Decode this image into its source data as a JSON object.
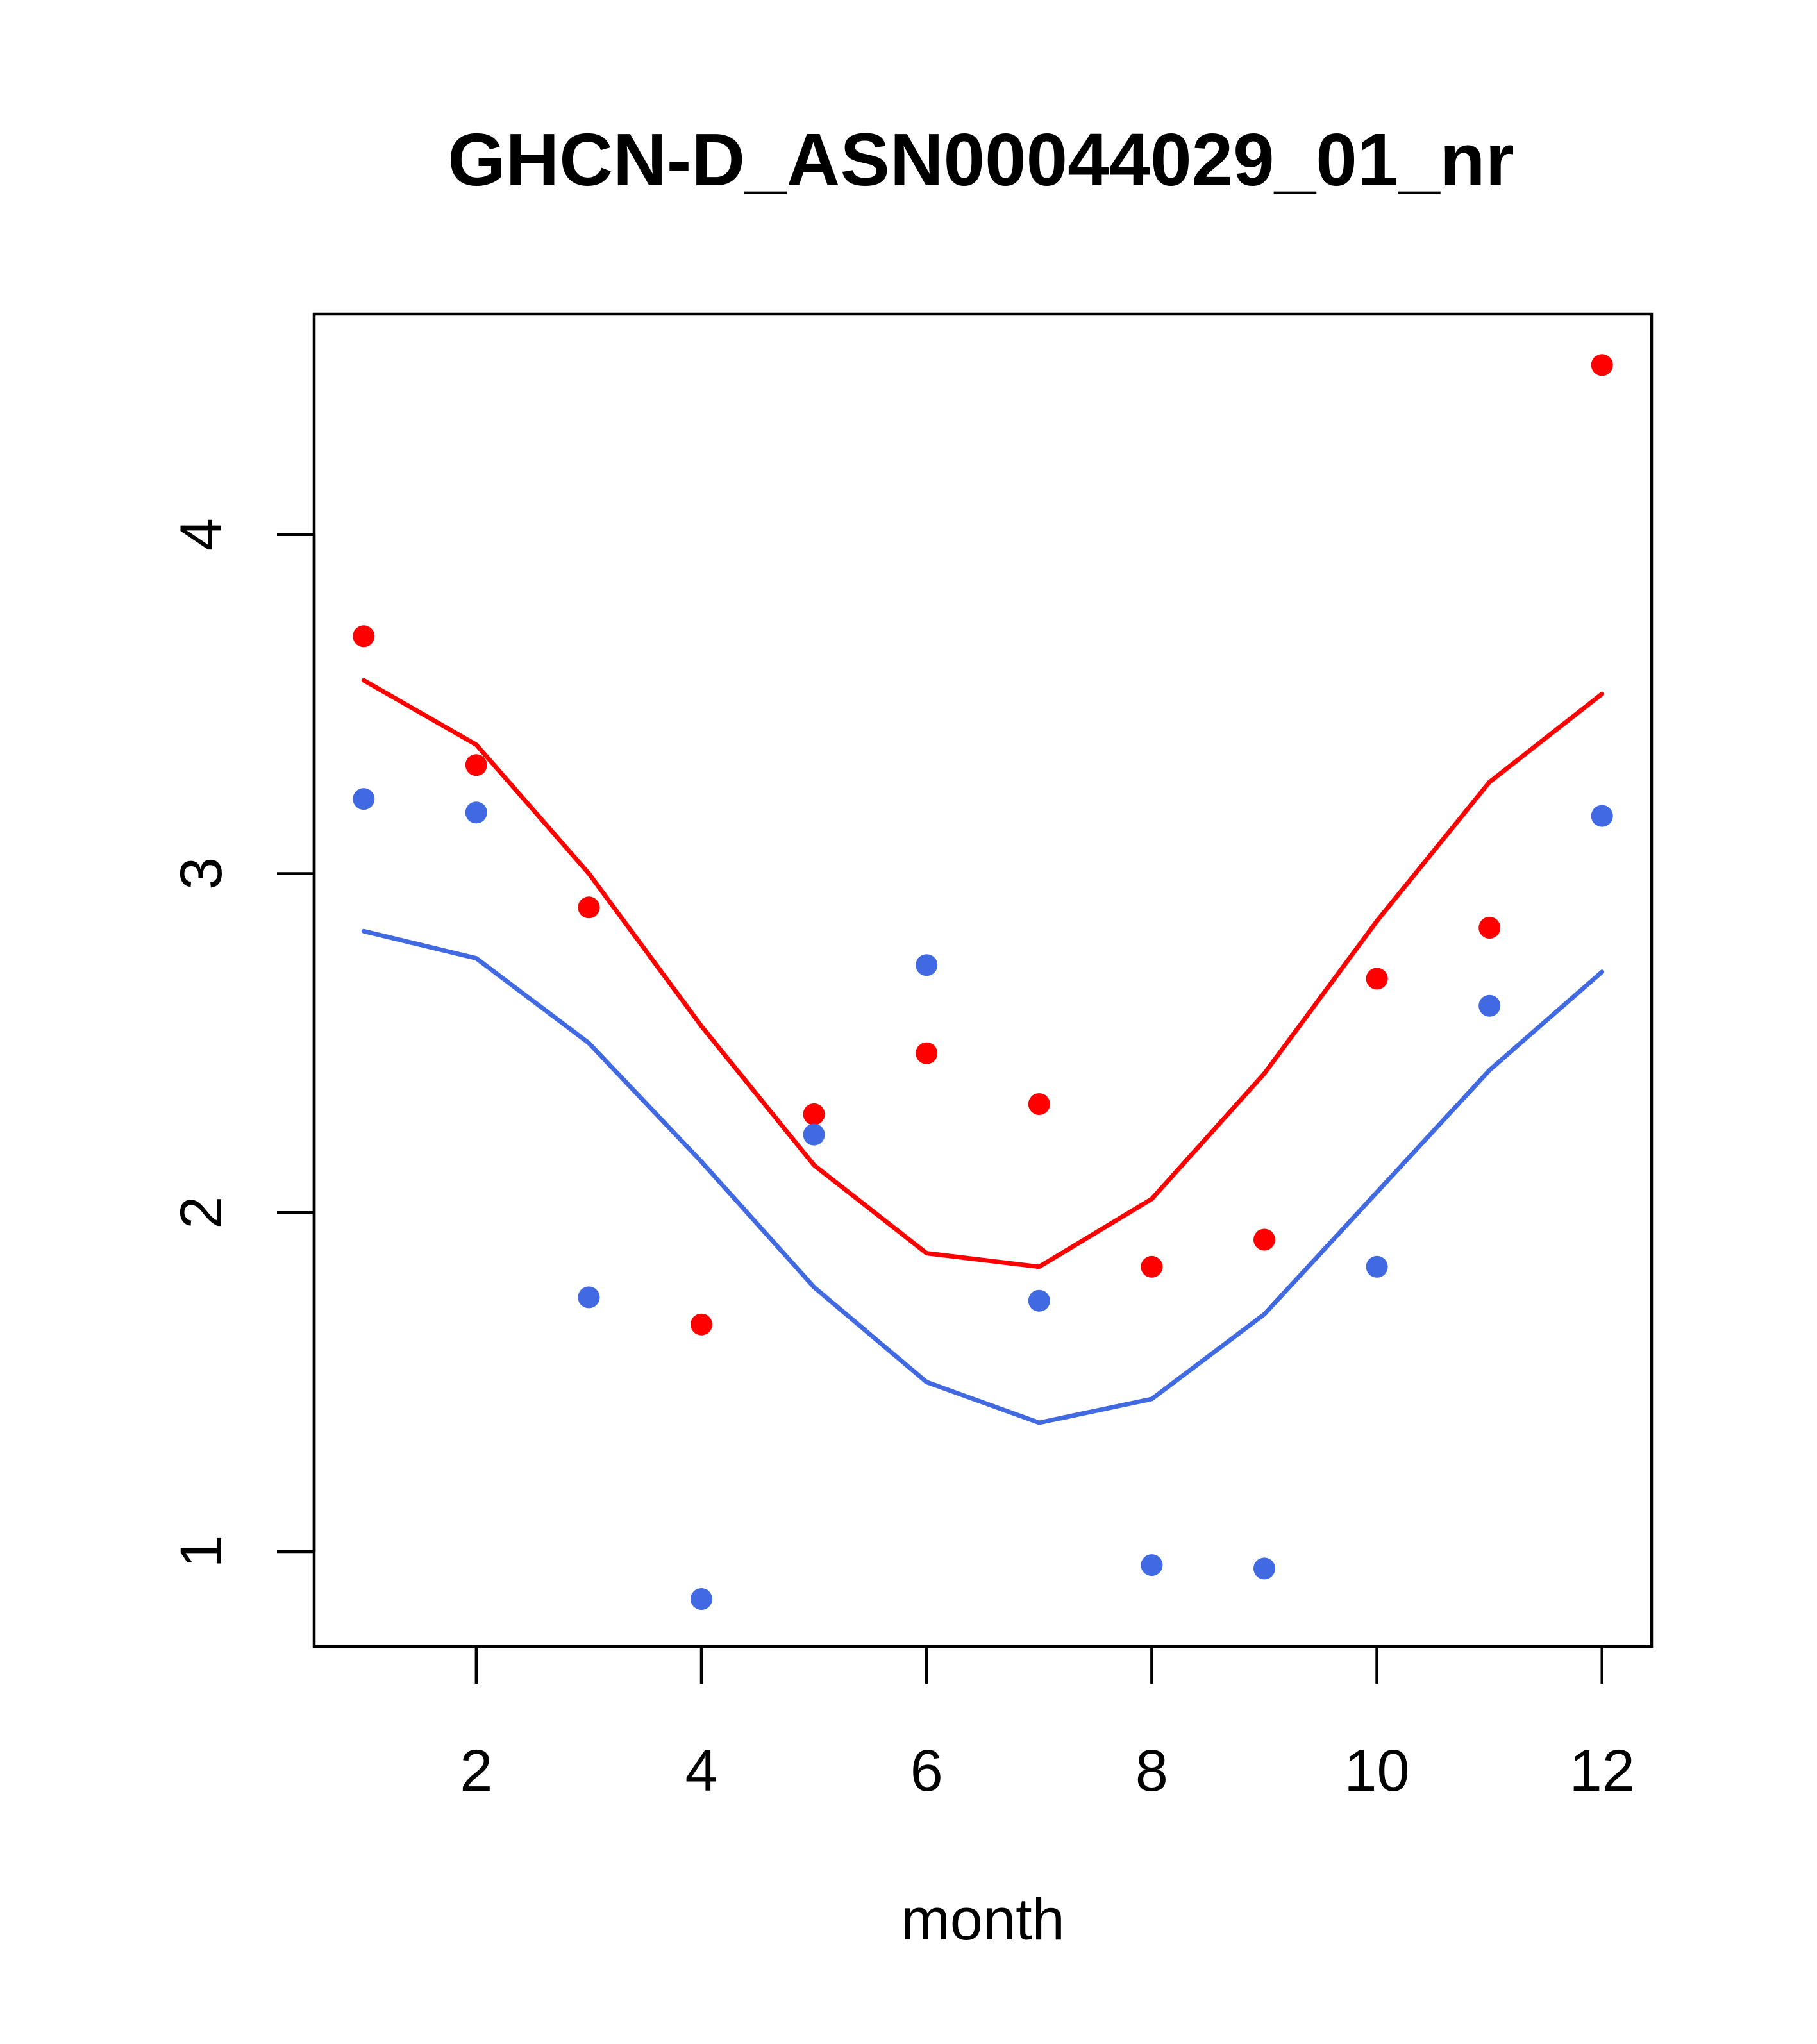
{
  "chart_data": {
    "type": "scatter",
    "title": "GHCN-D_ASN00044029_01_nr",
    "xlabel": "month",
    "ylabel": "",
    "xlim": [
      0.56,
      12.44
    ],
    "ylim": [
      0.72,
      4.65
    ],
    "x_ticks": [
      2,
      4,
      6,
      8,
      10,
      12
    ],
    "y_ticks": [
      1,
      2,
      3,
      4
    ],
    "grid": false,
    "legend": "none",
    "series": [
      {
        "color": "#ff0000",
        "points_x": [
          1,
          2,
          3,
          4,
          5,
          6,
          7,
          8,
          9,
          10,
          11,
          12
        ],
        "points_y": [
          3.7,
          3.32,
          2.9,
          1.67,
          2.29,
          2.47,
          2.32,
          1.84,
          1.92,
          2.69,
          2.84,
          4.5
        ],
        "line_x": [
          1,
          2,
          3,
          4,
          5,
          6,
          7,
          8,
          9,
          10,
          11,
          12
        ],
        "line_y": [
          3.57,
          3.38,
          3.0,
          2.55,
          2.14,
          1.88,
          1.84,
          2.04,
          2.41,
          2.86,
          3.27,
          3.53
        ]
      },
      {
        "color": "#4169e1",
        "points_x": [
          1,
          2,
          3,
          4,
          5,
          6,
          7,
          8,
          9,
          10,
          11,
          12
        ],
        "points_y": [
          3.22,
          3.18,
          1.75,
          0.86,
          2.23,
          2.73,
          1.74,
          0.96,
          0.95,
          1.84,
          2.61,
          3.17
        ],
        "line_x": [
          1,
          2,
          3,
          4,
          5,
          6,
          7,
          8,
          9,
          10,
          11,
          12
        ],
        "line_y": [
          2.83,
          2.75,
          2.5,
          2.15,
          1.78,
          1.5,
          1.38,
          1.45,
          1.7,
          2.06,
          2.42,
          2.71
        ]
      }
    ]
  }
}
